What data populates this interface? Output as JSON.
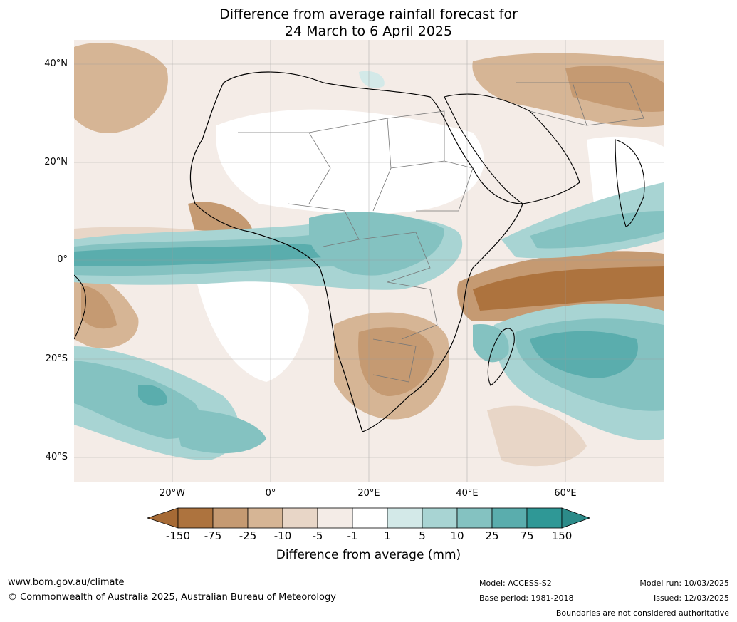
{
  "title": {
    "line1": "Difference from average rainfall forecast for",
    "line2": "24 March to 6 April 2025"
  },
  "map": {
    "region": "Africa",
    "lat_labels": [
      "40°N",
      "20°N",
      "0°",
      "20°S",
      "40°S"
    ],
    "lon_labels": [
      "20°W",
      "0°",
      "20°E",
      "40°E",
      "60°E"
    ]
  },
  "colorbar": {
    "label": "Difference from average (mm)",
    "ticks": [
      "-150",
      "-75",
      "-25",
      "-10",
      "-5",
      "-1",
      "1",
      "5",
      "10",
      "25",
      "75",
      "150"
    ],
    "colors": [
      "#a66a35",
      "#ad733e",
      "#c59a72",
      "#d6b595",
      "#e8d6c7",
      "#f4ece7",
      "#ffffff",
      "#d3e9e8",
      "#a8d4d3",
      "#84c2c1",
      "#5aadad",
      "#2f9896",
      "#2c8b89"
    ]
  },
  "footer": {
    "website": "www.bom.gov.au/climate",
    "copyright": "© Commonwealth of Australia 2025, Australian Bureau of Meteorology",
    "model": "Model: ACCESS-S2",
    "base_period": "Base period: 1981-2018",
    "model_run": "Model run: 10/03/2025",
    "issued": "Issued: 12/03/2025",
    "disclaimer": "Boundaries are not considered authoritative"
  }
}
